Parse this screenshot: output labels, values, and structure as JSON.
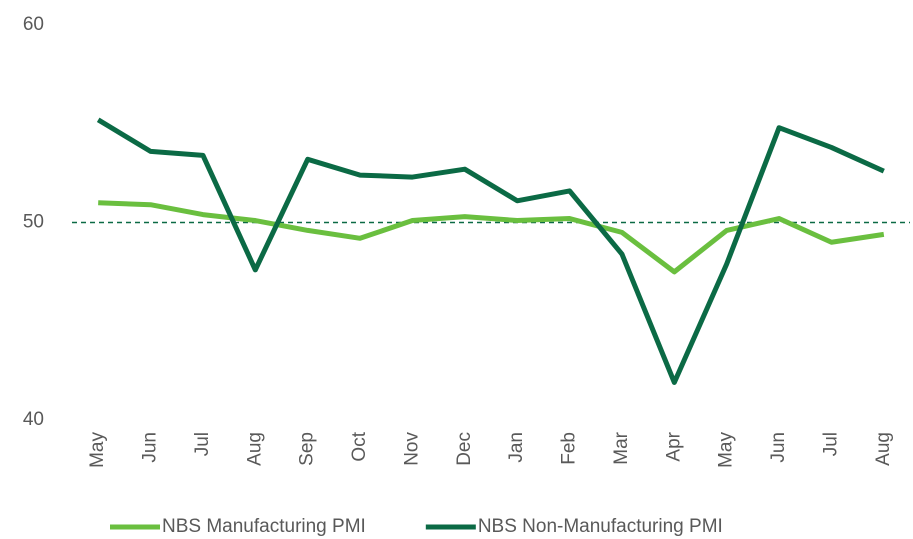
{
  "chart_data": {
    "type": "line",
    "categories": [
      "May",
      "Jun",
      "Jul",
      "Aug",
      "Sep",
      "Oct",
      "Nov",
      "Dec",
      "Jan",
      "Feb",
      "Mar",
      "Apr",
      "May",
      "Jun",
      "Jul",
      "Aug"
    ],
    "series": [
      {
        "name": "NBS Manufacturing PMI",
        "color": "#6abf3f",
        "values": [
          51.0,
          50.9,
          50.4,
          50.1,
          49.6,
          49.2,
          50.1,
          50.3,
          50.1,
          50.2,
          49.5,
          47.5,
          49.6,
          50.2,
          49.0,
          49.4
        ]
      },
      {
        "name": "NBS Non-Manufacturing PMI",
        "color": "#0b6a45",
        "values": [
          55.2,
          53.6,
          53.4,
          47.6,
          53.2,
          52.4,
          52.3,
          52.7,
          51.1,
          51.6,
          48.4,
          41.9,
          47.9,
          54.8,
          53.8,
          52.6
        ]
      }
    ],
    "ylim": [
      40,
      60
    ],
    "yticks": [
      40,
      50,
      60
    ],
    "reference_line": 50,
    "reference_color": "#0b6a45",
    "grid": false,
    "legend": "bottom"
  }
}
